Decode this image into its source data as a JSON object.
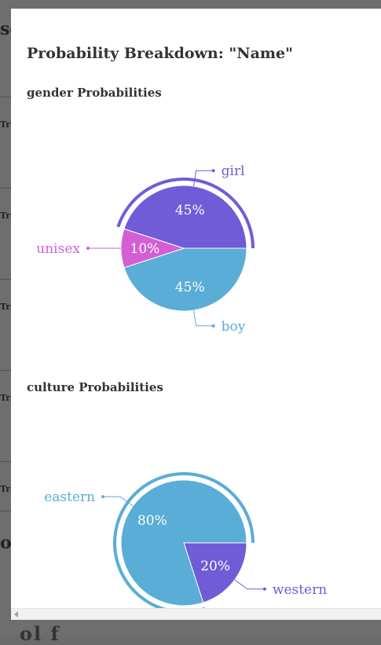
{
  "background_page": {
    "heading_fragment": "se",
    "row_fragment": "Tr",
    "lower_heading_fragment": "op",
    "bottom_fragment": "ol   f"
  },
  "modal": {
    "title": "Probability Breakdown: \"Name\""
  },
  "sections": [
    {
      "title": "gender Probabilities"
    },
    {
      "title": "culture Probabilities"
    }
  ],
  "chart_data": [
    {
      "type": "pie",
      "title": "gender Probabilities",
      "categories": [
        "boy",
        "unisex",
        "girl"
      ],
      "values": [
        45,
        10,
        45
      ],
      "labels": [
        "45%",
        "10%",
        "45%"
      ],
      "colors": [
        "#5aadd6",
        "#d35fd3",
        "#6f5cd6"
      ],
      "highlighted": "girl"
    },
    {
      "type": "pie",
      "title": "culture Probabilities",
      "categories": [
        "western",
        "eastern"
      ],
      "values": [
        20,
        80
      ],
      "labels": [
        "20%",
        "80%"
      ],
      "colors": [
        "#6f5cd6",
        "#5aadd6"
      ],
      "highlighted": "eastern"
    }
  ]
}
